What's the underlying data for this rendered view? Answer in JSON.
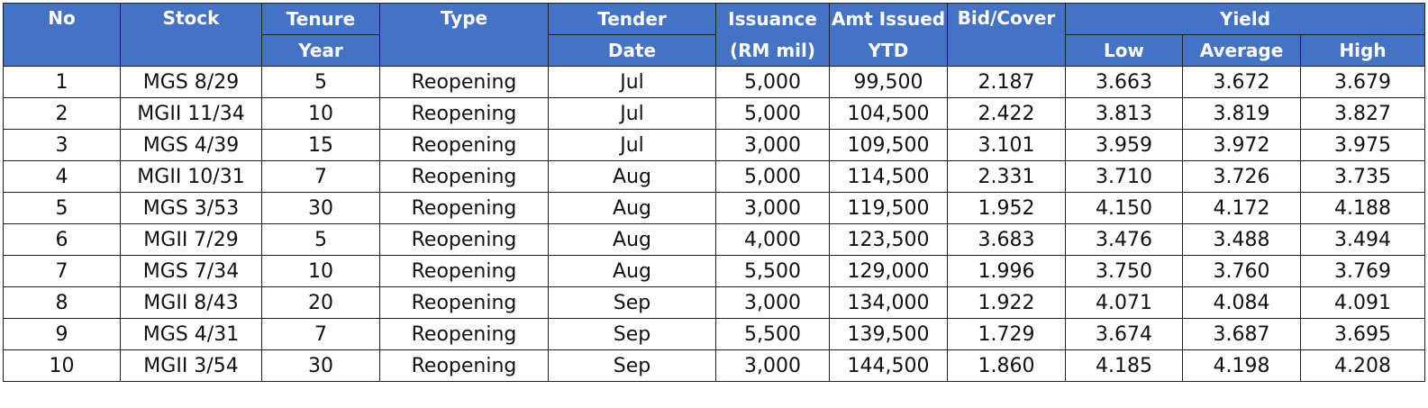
{
  "header": {
    "no": "No",
    "stock": "Stock",
    "tenure": "Tenure",
    "tenure_sub": "Year",
    "type": "Type",
    "tender": "Tender",
    "tender_sub": "Date",
    "issuance": "Issuance",
    "issuance_sub": "(RM mil)",
    "amt_issued": "Amt Issued",
    "amt_issued_sub": "YTD",
    "bid_cover": "Bid/Cover",
    "yield": "Yield",
    "yield_low": "Low",
    "yield_avg": "Average",
    "yield_high": "High"
  },
  "rows": [
    {
      "no": "1",
      "stock": "MGS 8/29",
      "tenure": "5",
      "type": "Reopening",
      "tender": "Jul",
      "issuance": "5,000",
      "amt_ytd": "99,500",
      "bid_cover": "2.187",
      "low": "3.663",
      "avg": "3.672",
      "high": "3.679"
    },
    {
      "no": "2",
      "stock": "MGII 11/34",
      "tenure": "10",
      "type": "Reopening",
      "tender": "Jul",
      "issuance": "5,000",
      "amt_ytd": "104,500",
      "bid_cover": "2.422",
      "low": "3.813",
      "avg": "3.819",
      "high": "3.827"
    },
    {
      "no": "3",
      "stock": "MGS 4/39",
      "tenure": "15",
      "type": "Reopening",
      "tender": "Jul",
      "issuance": "3,000",
      "amt_ytd": "109,500",
      "bid_cover": "3.101",
      "low": "3.959",
      "avg": "3.972",
      "high": "3.975"
    },
    {
      "no": "4",
      "stock": "MGII 10/31",
      "tenure": "7",
      "type": "Reopening",
      "tender": "Aug",
      "issuance": "5,000",
      "amt_ytd": "114,500",
      "bid_cover": "2.331",
      "low": "3.710",
      "avg": "3.726",
      "high": "3.735"
    },
    {
      "no": "5",
      "stock": "MGS 3/53",
      "tenure": "30",
      "type": "Reopening",
      "tender": "Aug",
      "issuance": "3,000",
      "amt_ytd": "119,500",
      "bid_cover": "1.952",
      "low": "4.150",
      "avg": "4.172",
      "high": "4.188"
    },
    {
      "no": "6",
      "stock": "MGII 7/29",
      "tenure": "5",
      "type": "Reopening",
      "tender": "Aug",
      "issuance": "4,000",
      "amt_ytd": "123,500",
      "bid_cover": "3.683",
      "low": "3.476",
      "avg": "3.488",
      "high": "3.494"
    },
    {
      "no": "7",
      "stock": "MGS 7/34",
      "tenure": "10",
      "type": "Reopening",
      "tender": "Aug",
      "issuance": "5,500",
      "amt_ytd": "129,000",
      "bid_cover": "1.996",
      "low": "3.750",
      "avg": "3.760",
      "high": "3.769"
    },
    {
      "no": "8",
      "stock": "MGII 8/43",
      "tenure": "20",
      "type": "Reopening",
      "tender": "Sep",
      "issuance": "3,000",
      "amt_ytd": "134,000",
      "bid_cover": "1.922",
      "low": "4.071",
      "avg": "4.084",
      "high": "4.091"
    },
    {
      "no": "9",
      "stock": "MGS 4/31",
      "tenure": "7",
      "type": "Reopening",
      "tender": "Sep",
      "issuance": "5,500",
      "amt_ytd": "139,500",
      "bid_cover": "1.729",
      "low": "3.674",
      "avg": "3.687",
      "high": "3.695"
    },
    {
      "no": "10",
      "stock": "MGII 3/54",
      "tenure": "30",
      "type": "Reopening",
      "tender": "Sep",
      "issuance": "3,000",
      "amt_ytd": "144,500",
      "bid_cover": "1.860",
      "low": "4.185",
      "avg": "4.198",
      "high": "4.208"
    }
  ],
  "colors": {
    "header_bg": "#4472c4",
    "header_text": "#ffffff",
    "border": "#1f1f1f"
  }
}
